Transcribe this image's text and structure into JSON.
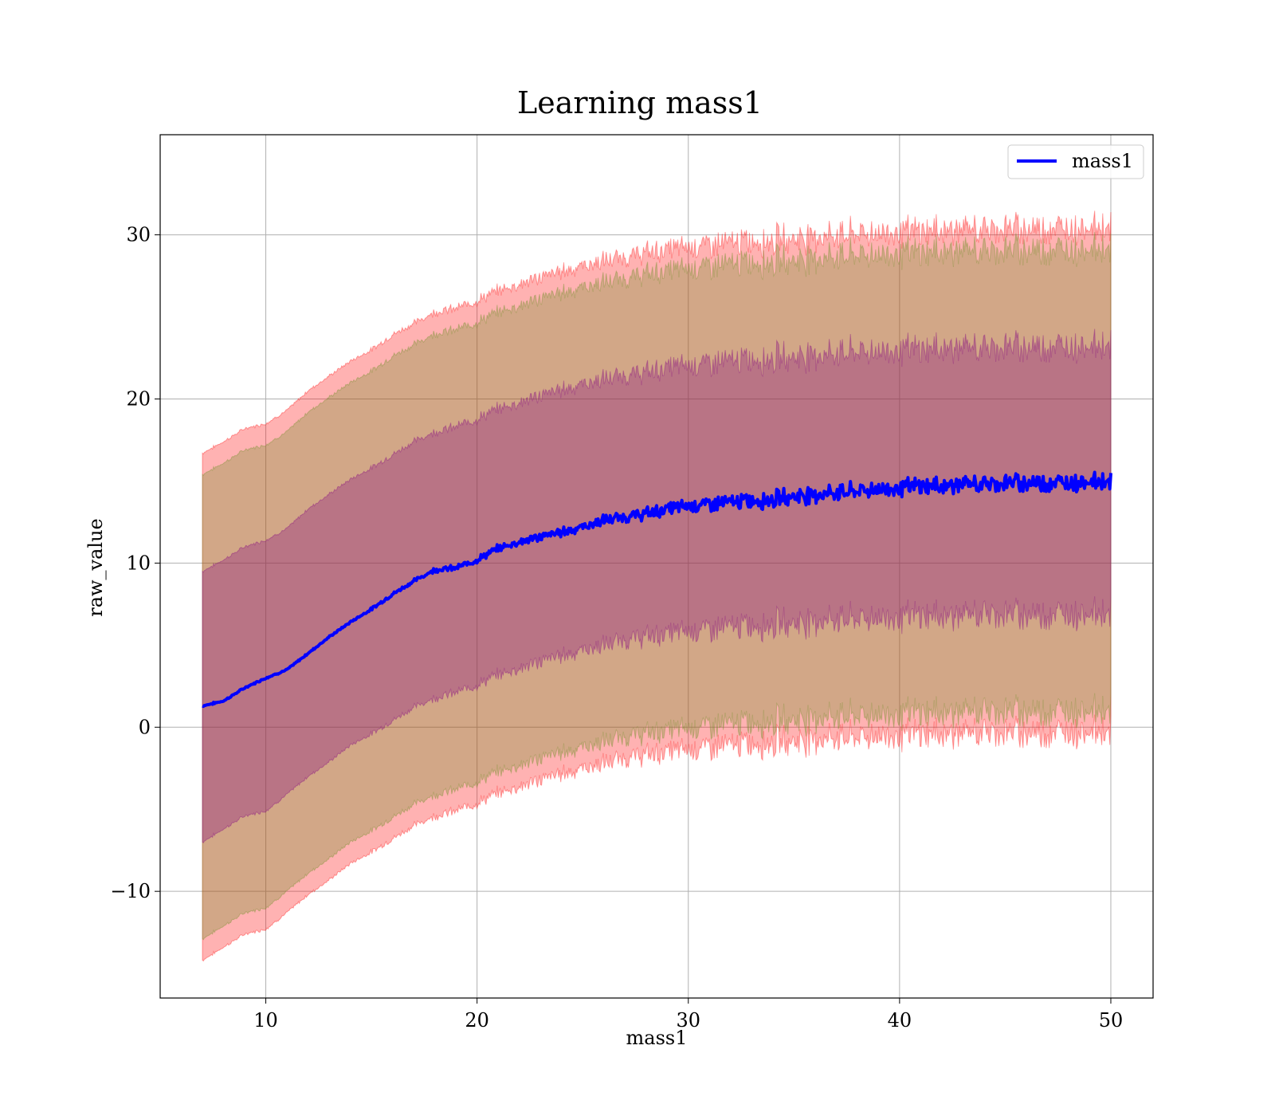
{
  "chart_data": {
    "type": "line",
    "title": "Learning mass1",
    "xlabel": "mass1",
    "ylabel": "raw_value",
    "xlim": [
      5,
      52
    ],
    "ylim": [
      -16.5,
      36.1
    ],
    "xticks": [
      10,
      20,
      30,
      40,
      50
    ],
    "yticks": [
      -10,
      0,
      10,
      20,
      30
    ],
    "xtick_labels": [
      "10",
      "20",
      "30",
      "40",
      "50"
    ],
    "ytick_labels": [
      "−10",
      "0",
      "10",
      "20",
      "30"
    ],
    "grid": true,
    "legend": {
      "placement": "top-right",
      "entries": [
        "mass1"
      ]
    },
    "series": [
      {
        "name": "mass1",
        "color": "#0000ff",
        "x": [
          7,
          8,
          9,
          10,
          11,
          12,
          13,
          14,
          15,
          16,
          17,
          18,
          19,
          20,
          21,
          22,
          23,
          24,
          25,
          26,
          27,
          28,
          29,
          30,
          31,
          32,
          33,
          34,
          35,
          36,
          37,
          38,
          39,
          40,
          41,
          42,
          43,
          44,
          45,
          46,
          47,
          48,
          49,
          50
        ],
        "y": [
          1.3,
          1.6,
          2.4,
          3.0,
          3.5,
          4.5,
          5.5,
          6.4,
          7.2,
          8.1,
          8.9,
          9.6,
          9.7,
          10.2,
          10.9,
          11.3,
          11.6,
          11.9,
          12.2,
          12.6,
          12.8,
          13.0,
          13.3,
          13.5,
          13.6,
          13.7,
          13.8,
          13.9,
          14.1,
          14.2,
          14.3,
          14.4,
          14.5,
          14.6,
          14.7,
          14.7,
          14.8,
          14.8,
          14.9,
          14.9,
          14.9,
          14.9,
          15.0,
          15.0
        ]
      }
    ],
    "bands": [
      {
        "color": "#ff0000",
        "upper": [
          16.7,
          17.4,
          18.2,
          18.5,
          19.3,
          20.5,
          21.4,
          22.3,
          23.0,
          23.9,
          24.6,
          25.3,
          25.5,
          26.0,
          26.6,
          27.0,
          27.4,
          27.8,
          28.1,
          28.4,
          28.6,
          28.9,
          29.1,
          29.3,
          29.4,
          29.5,
          29.6,
          29.7,
          29.8,
          29.9,
          30.0,
          30.1,
          30.1,
          30.2,
          30.2,
          30.3,
          30.3,
          30.3,
          30.4,
          30.4,
          30.4,
          30.4,
          30.5,
          30.5
        ],
        "lower": [
          -14.2,
          -13.4,
          -12.6,
          -12.3,
          -11.3,
          -10.2,
          -9.3,
          -8.3,
          -7.6,
          -6.8,
          -6.0,
          -5.4,
          -5.1,
          -4.6,
          -4.0,
          -3.6,
          -3.2,
          -2.8,
          -2.5,
          -2.2,
          -1.9,
          -1.7,
          -1.5,
          -1.3,
          -1.2,
          -1.1,
          -1.0,
          -0.9,
          -0.8,
          -0.7,
          -0.6,
          -0.6,
          -0.5,
          -0.5,
          -0.4,
          -0.4,
          -0.4,
          -0.3,
          -0.3,
          -0.3,
          -0.3,
          -0.3,
          -0.2,
          -0.2
        ]
      },
      {
        "color": "#6b8e23",
        "upper": [
          15.4,
          16.1,
          16.9,
          17.2,
          18.0,
          19.2,
          20.1,
          21.0,
          21.7,
          22.6,
          23.3,
          24.0,
          24.2,
          24.7,
          25.3,
          25.7,
          26.1,
          26.5,
          26.8,
          27.1,
          27.3,
          27.6,
          27.8,
          28.0,
          28.1,
          28.2,
          28.3,
          28.4,
          28.5,
          28.6,
          28.7,
          28.8,
          28.8,
          28.9,
          28.9,
          29.0,
          29.0,
          29.0,
          29.1,
          29.1,
          29.1,
          29.1,
          29.2,
          29.2
        ],
        "lower": [
          -12.9,
          -12.1,
          -11.3,
          -11.0,
          -10.0,
          -8.9,
          -8.0,
          -7.0,
          -6.3,
          -5.5,
          -4.7,
          -4.1,
          -3.8,
          -3.3,
          -2.7,
          -2.3,
          -1.9,
          -1.5,
          -1.2,
          -0.9,
          -0.6,
          -0.4,
          -0.2,
          0.0,
          0.1,
          0.2,
          0.3,
          0.4,
          0.5,
          0.6,
          0.7,
          0.7,
          0.8,
          0.8,
          0.9,
          0.9,
          0.9,
          1.0,
          1.0,
          1.0,
          1.0,
          1.0,
          1.1,
          1.1
        ]
      },
      {
        "color": "#800080",
        "upper": [
          9.5,
          10.2,
          11.0,
          11.4,
          12.1,
          13.3,
          14.2,
          15.1,
          15.8,
          16.6,
          17.4,
          18.0,
          18.3,
          18.8,
          19.4,
          19.8,
          20.2,
          20.6,
          20.9,
          21.2,
          21.4,
          21.6,
          21.9,
          22.1,
          22.2,
          22.3,
          22.4,
          22.5,
          22.6,
          22.7,
          22.8,
          22.9,
          22.9,
          23.0,
          23.0,
          23.1,
          23.1,
          23.1,
          23.2,
          23.2,
          23.2,
          23.2,
          23.3,
          23.3
        ],
        "lower": [
          -7.0,
          -6.2,
          -5.4,
          -5.1,
          -4.1,
          -3.0,
          -2.1,
          -1.1,
          -0.4,
          0.4,
          1.2,
          1.8,
          2.1,
          2.6,
          3.2,
          3.6,
          4.0,
          4.4,
          4.7,
          5.0,
          5.3,
          5.5,
          5.7,
          5.9,
          6.0,
          6.1,
          6.2,
          6.3,
          6.4,
          6.5,
          6.6,
          6.6,
          6.7,
          6.7,
          6.8,
          6.8,
          6.8,
          6.9,
          6.9,
          6.9,
          6.9,
          6.9,
          7.0,
          7.0
        ]
      }
    ]
  }
}
